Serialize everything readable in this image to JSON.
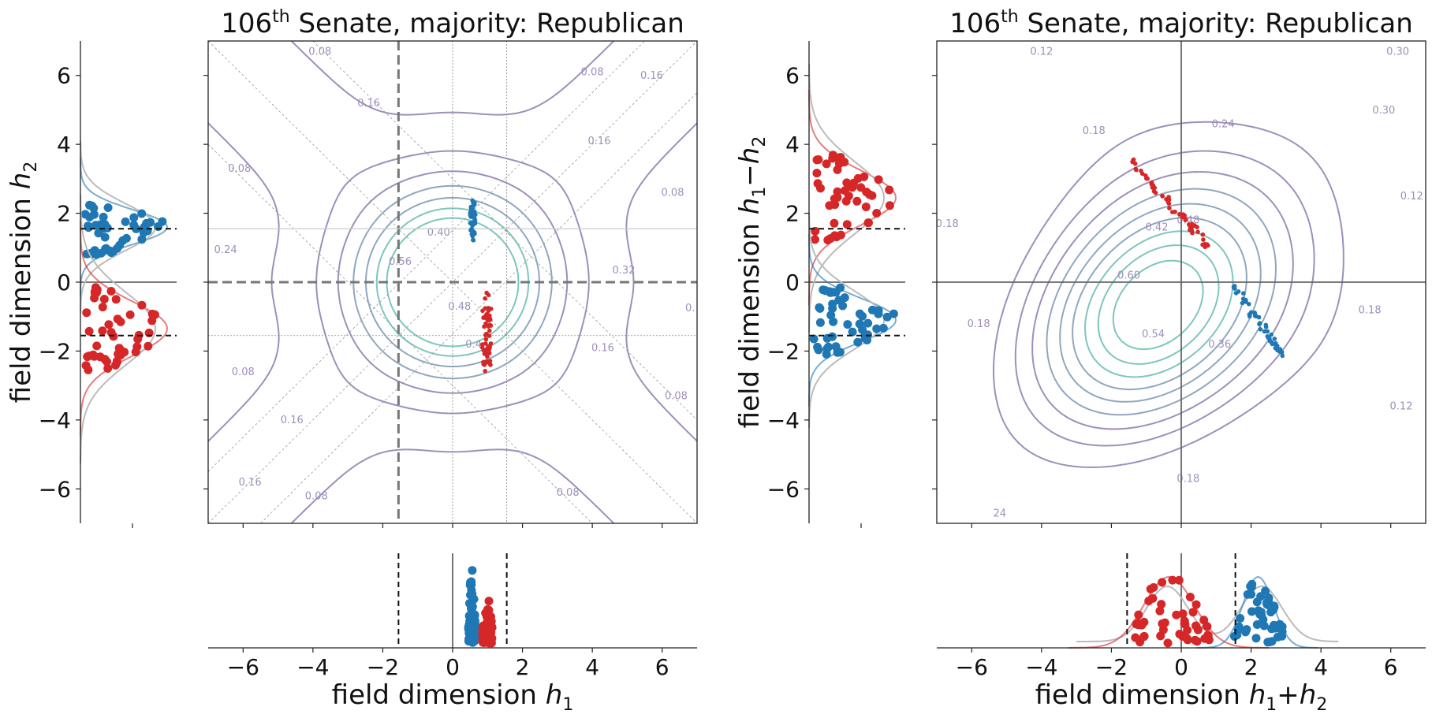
{
  "figure": {
    "title_prefix": "106",
    "title_sup": "th",
    "title_rest": " Senate, majority: Republican"
  },
  "colors": {
    "republican": "#d62728",
    "democrat": "#1f77b4",
    "contour_low": "#9e8fbb",
    "contour_mid": "#8fa7c0",
    "contour_high": "#7cc7bd",
    "axis_line": "#666666",
    "kde_gray": "#bbbbbb"
  },
  "chart_data": [
    {
      "id": "left-main",
      "type": "scatter",
      "title": "106th Senate, majority: Republican",
      "xlabel_text": "field dimension ",
      "xlabel_var": "h",
      "xlabel_sub": "1",
      "xlim": [
        -7,
        7
      ],
      "ylim": [
        -7,
        7
      ],
      "ticks": [
        -6,
        -4,
        -2,
        0,
        2,
        4,
        6
      ],
      "tick_labels": [
        "−6",
        "−4",
        "−2",
        "0",
        "2",
        "4",
        "6"
      ],
      "reference_lines": {
        "x_dashed": -1.55,
        "y_dashed": 0,
        "x_dotted": [
          0,
          1.55
        ],
        "y_dotted": [
          -1.55
        ],
        "y_thin": [
          1.55
        ]
      },
      "contour_labels": [
        {
          "text": "0.08",
          "x": -3.8,
          "y": 6.6
        },
        {
          "text": "0.08",
          "x": 4.0,
          "y": 6.0
        },
        {
          "text": "0.16",
          "x": -2.4,
          "y": 5.1
        },
        {
          "text": "0.16",
          "x": 5.7,
          "y": 5.9
        },
        {
          "text": "0.16",
          "x": 4.2,
          "y": 4.0
        },
        {
          "text": "0.08",
          "x": -6.1,
          "y": 3.2
        },
        {
          "text": "0.08",
          "x": 6.3,
          "y": 2.5
        },
        {
          "text": "0.24",
          "x": -6.5,
          "y": 0.85
        },
        {
          "text": "0.40",
          "x": -0.4,
          "y": 1.35
        },
        {
          "text": "0.56",
          "x": -1.5,
          "y": 0.5
        },
        {
          "text": "0.32",
          "x": 4.9,
          "y": 0.25
        },
        {
          "text": "0.48",
          "x": 0.2,
          "y": -0.8
        },
        {
          "text": "0.4",
          "x": 0.6,
          "y": -1.9
        },
        {
          "text": "0.16",
          "x": 4.3,
          "y": -2.0
        },
        {
          "text": "0.08",
          "x": -6.0,
          "y": -2.7
        },
        {
          "text": "0.16",
          "x": -4.6,
          "y": -4.1
        },
        {
          "text": "0.08",
          "x": 6.4,
          "y": -3.4
        },
        {
          "text": "0.16",
          "x": -5.8,
          "y": -5.9
        },
        {
          "text": "0.08",
          "x": -3.9,
          "y": -6.3
        },
        {
          "text": "0.08",
          "x": 3.3,
          "y": -6.2
        },
        {
          "text": "0.",
          "x": 6.8,
          "y": -0.85
        }
      ],
      "democrat_cluster": {
        "x_range": [
          0.5,
          0.65
        ],
        "y_range": [
          1.2,
          2.4
        ],
        "count": 45
      },
      "republican_cluster": {
        "x_range": [
          0.85,
          1.1
        ],
        "y_range": [
          -2.6,
          -0.3
        ],
        "count": 55
      }
    },
    {
      "id": "left-marginal-y",
      "type": "scatter",
      "ylabel_text": "field dimension ",
      "ylabel_var": "h",
      "ylabel_sub": "2",
      "ylim": [
        -7,
        7
      ],
      "ticks": [
        -6,
        -4,
        -2,
        0,
        2,
        4,
        6
      ],
      "tick_labels": [
        "−6",
        "−4",
        "−2",
        "0",
        "2",
        "4",
        "6"
      ],
      "dashed_levels": [
        1.55,
        -1.55
      ],
      "democrat_range": [
        0.8,
        2.4
      ],
      "republican_range": [
        -2.6,
        -0.1
      ]
    },
    {
      "id": "left-marginal-x",
      "type": "scatter",
      "dashed_levels": [
        -1.55,
        1.55
      ],
      "democrat_range": [
        0.45,
        0.65
      ],
      "republican_range": [
        0.85,
        1.15
      ]
    },
    {
      "id": "right-main",
      "type": "scatter",
      "title": "106th Senate, majority: Republican",
      "xlabel_text": "field dimension ",
      "xlabel_var": "h",
      "xlabel_expr": "+",
      "xlim": [
        -7,
        7
      ],
      "ylim": [
        -7,
        7
      ],
      "ticks": [
        -6,
        -4,
        -2,
        0,
        2,
        4,
        6
      ],
      "tick_labels": [
        "−6",
        "−4",
        "−2",
        "0",
        "2",
        "4",
        "6"
      ],
      "contour_labels": [
        {
          "text": "0.12",
          "x": -4.0,
          "y": 6.6
        },
        {
          "text": "0.30",
          "x": 6.2,
          "y": 6.6
        },
        {
          "text": "0.18",
          "x": -2.5,
          "y": 4.3
        },
        {
          "text": "0.24",
          "x": 1.2,
          "y": 4.5
        },
        {
          "text": "0.30",
          "x": 5.8,
          "y": 4.9
        },
        {
          "text": "0.12",
          "x": 6.6,
          "y": 2.4
        },
        {
          "text": "0.18",
          "x": -6.7,
          "y": 1.6
        },
        {
          "text": "0.42",
          "x": -0.7,
          "y": 1.5
        },
        {
          "text": "0.48",
          "x": 0.2,
          "y": 1.7
        },
        {
          "text": "0.60",
          "x": -1.5,
          "y": 0.1
        },
        {
          "text": "0.18",
          "x": 5.4,
          "y": -0.9
        },
        {
          "text": "0.18",
          "x": -5.8,
          "y": -1.3
        },
        {
          "text": "0.54",
          "x": -0.8,
          "y": -1.6
        },
        {
          "text": "0.36",
          "x": 1.1,
          "y": -1.9
        },
        {
          "text": "0.12",
          "x": 6.3,
          "y": -3.7
        },
        {
          "text": "0.18",
          "x": 0.2,
          "y": -5.8
        },
        {
          "text": "24",
          "x": -5.2,
          "y": -6.8
        }
      ],
      "republican_cluster": {
        "x_range": [
          -1.5,
          0.8
        ],
        "y_range": [
          1.0,
          3.6
        ],
        "count": 55
      },
      "democrat_cluster": {
        "x_range": [
          1.5,
          2.9
        ],
        "y_range": [
          -2.1,
          -0.1
        ],
        "count": 45
      }
    },
    {
      "id": "right-marginal-y",
      "type": "scatter",
      "ylabel_text": "field dimension ",
      "ylabel_var": "h",
      "ylabel_expr": "−",
      "ylim": [
        -7,
        7
      ],
      "ticks": [
        -6,
        -4,
        -2,
        0,
        2,
        4,
        6
      ],
      "tick_labels": [
        "−6",
        "−4",
        "−2",
        "0",
        "2",
        "4",
        "6"
      ],
      "dashed_levels": [
        1.55,
        -1.55
      ],
      "republican_range": [
        1.2,
        3.7
      ],
      "democrat_range": [
        -2.1,
        -0.1
      ]
    },
    {
      "id": "right-marginal-x",
      "type": "scatter",
      "dashed_levels": [
        -1.55,
        1.55
      ],
      "republican_range": [
        -1.5,
        0.8
      ],
      "democrat_range": [
        1.5,
        2.9
      ]
    }
  ]
}
